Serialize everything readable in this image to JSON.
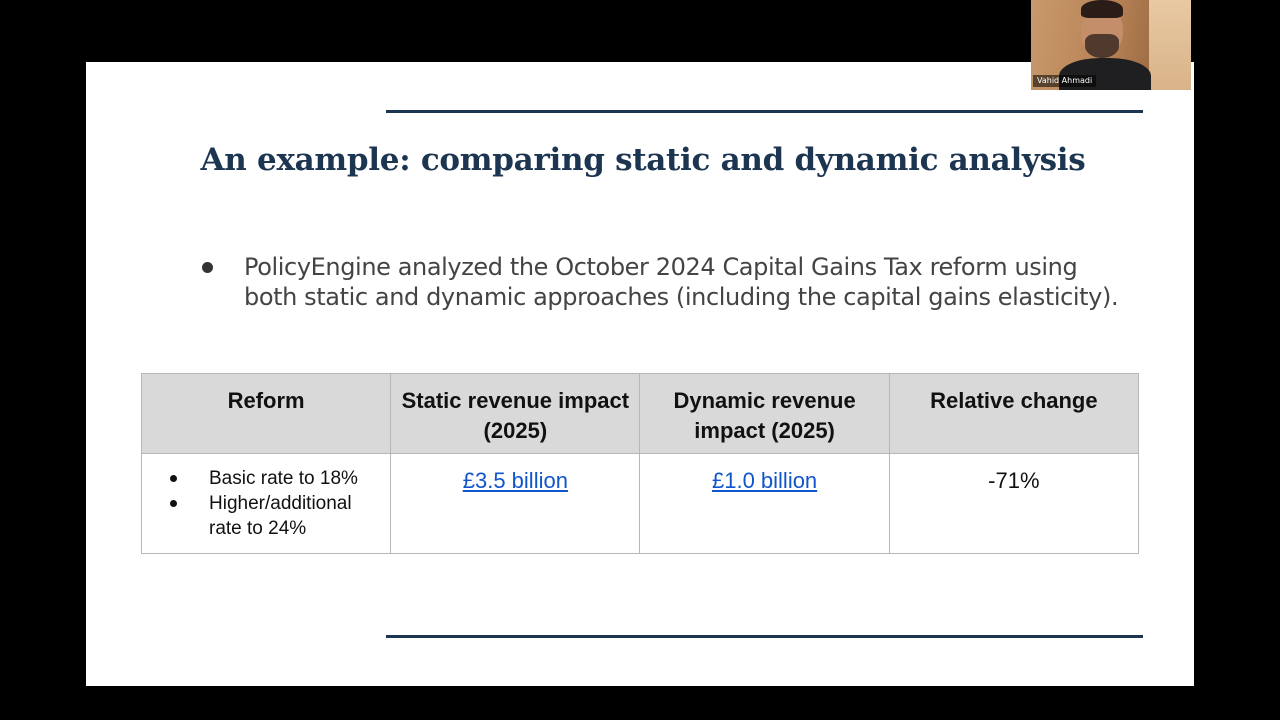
{
  "slide": {
    "title": "An example: comparing static and dynamic analysis",
    "bullet": "PolicyEngine analyzed the October 2024 Capital Gains Tax reform using both static and dynamic approaches (including the capital gains elasticity)."
  },
  "table": {
    "headers": [
      "Reform",
      "Static revenue impact (2025)",
      "Dynamic revenue impact (2025)",
      "Relative change"
    ],
    "row": {
      "reform_items": [
        "Basic rate to 18%",
        "Higher/additional rate to 24%"
      ],
      "static_impact": "£3.5 billion",
      "dynamic_impact": "£1.0 billion",
      "relative_change": "-71%"
    }
  },
  "video": {
    "participant_name": "Vahid Ahmadi"
  },
  "colors": {
    "title": "#1c3550",
    "rule": "#1c3550",
    "header_bg": "#d9d9d9",
    "link": "#1155cc"
  },
  "icons": {
    "bullet": "bullet-dot-icon"
  }
}
